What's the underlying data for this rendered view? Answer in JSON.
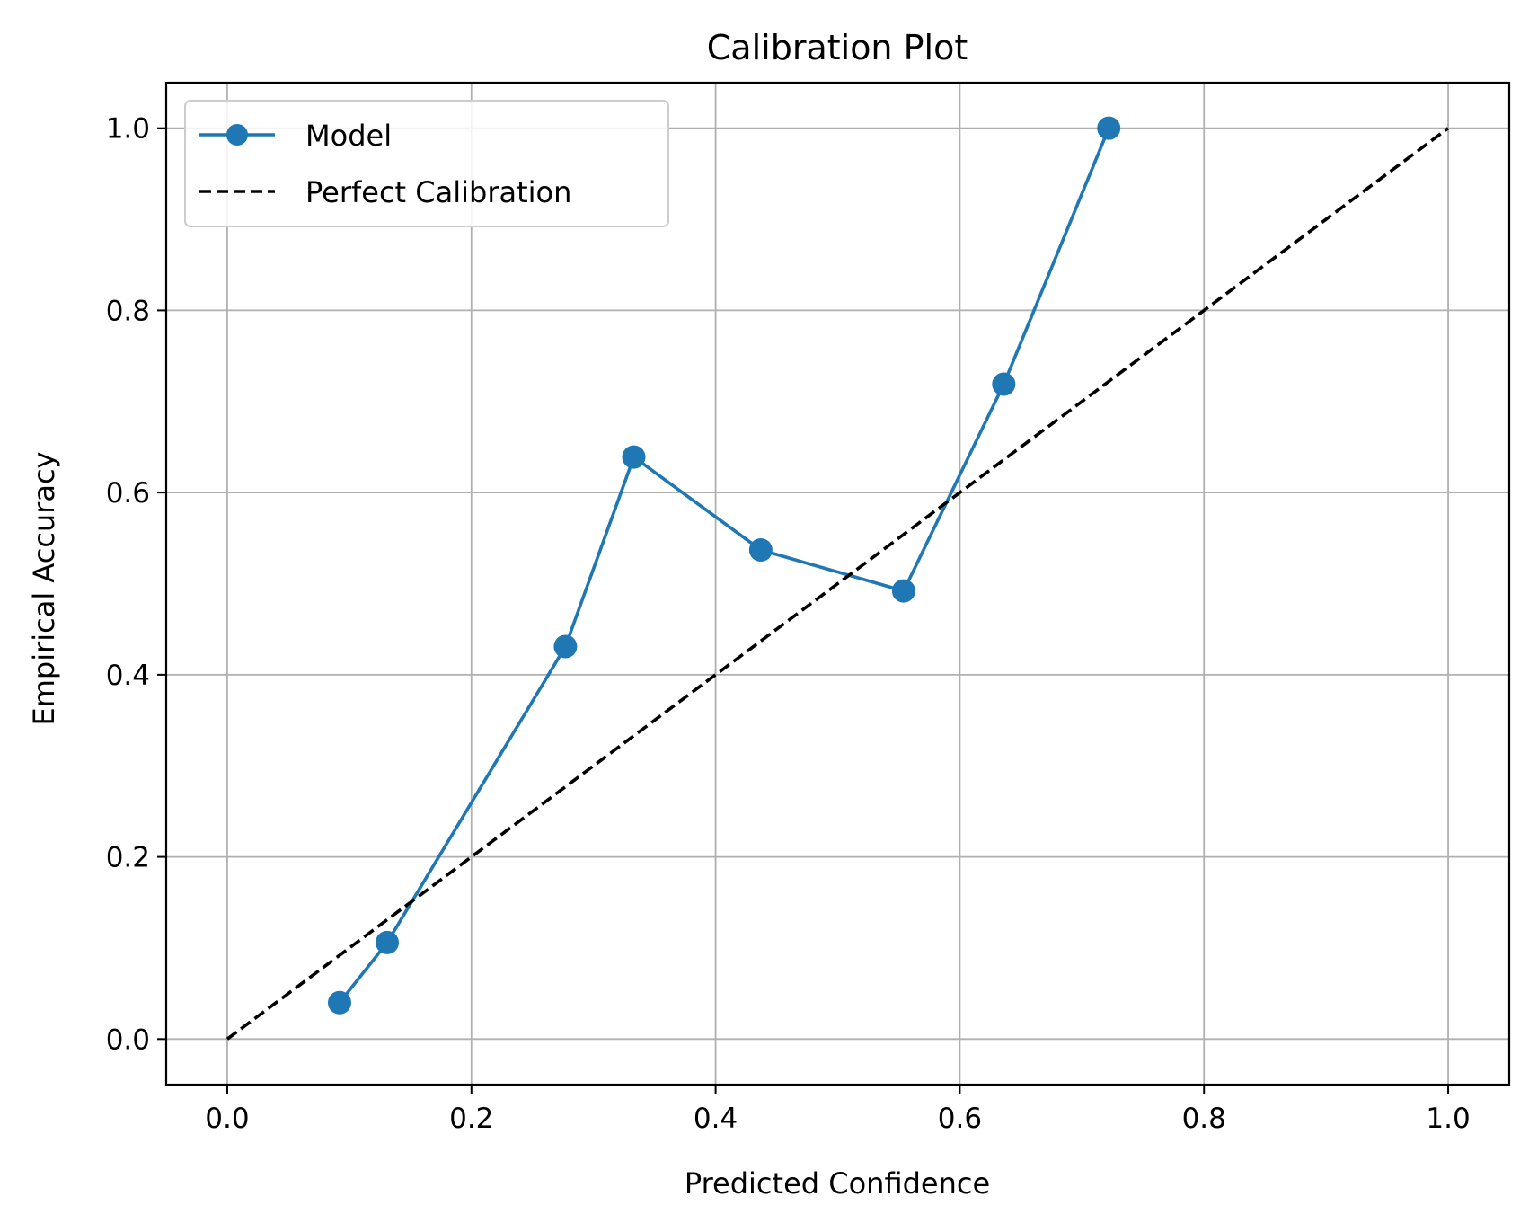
{
  "chart_data": {
    "type": "line",
    "title": "Calibration Plot",
    "xlabel": "Predicted Confidence",
    "ylabel": "Empirical Accuracy",
    "xlim": [
      -0.05,
      1.05
    ],
    "ylim": [
      -0.05,
      1.05
    ],
    "x_ticks": [
      0.0,
      0.2,
      0.4,
      0.6,
      0.8,
      1.0
    ],
    "x_tick_labels": [
      "0.0",
      "0.2",
      "0.4",
      "0.6",
      "0.8",
      "1.0"
    ],
    "y_ticks": [
      0.0,
      0.2,
      0.4,
      0.6,
      0.8,
      1.0
    ],
    "y_tick_labels": [
      "0.0",
      "0.2",
      "0.4",
      "0.6",
      "0.8",
      "1.0"
    ],
    "grid": true,
    "legend_position": "top-left",
    "series": [
      {
        "name": "Model",
        "style": "solid-with-markers",
        "color": "#1f77b4",
        "x": [
          0.092,
          0.131,
          0.277,
          0.333,
          0.437,
          0.554,
          0.636,
          0.722
        ],
        "y": [
          0.04,
          0.106,
          0.431,
          0.639,
          0.537,
          0.492,
          0.719,
          1.0
        ]
      },
      {
        "name": "Perfect Calibration",
        "style": "dashed",
        "color": "#000000",
        "x": [
          0.0,
          1.0
        ],
        "y": [
          0.0,
          1.0
        ]
      }
    ]
  }
}
